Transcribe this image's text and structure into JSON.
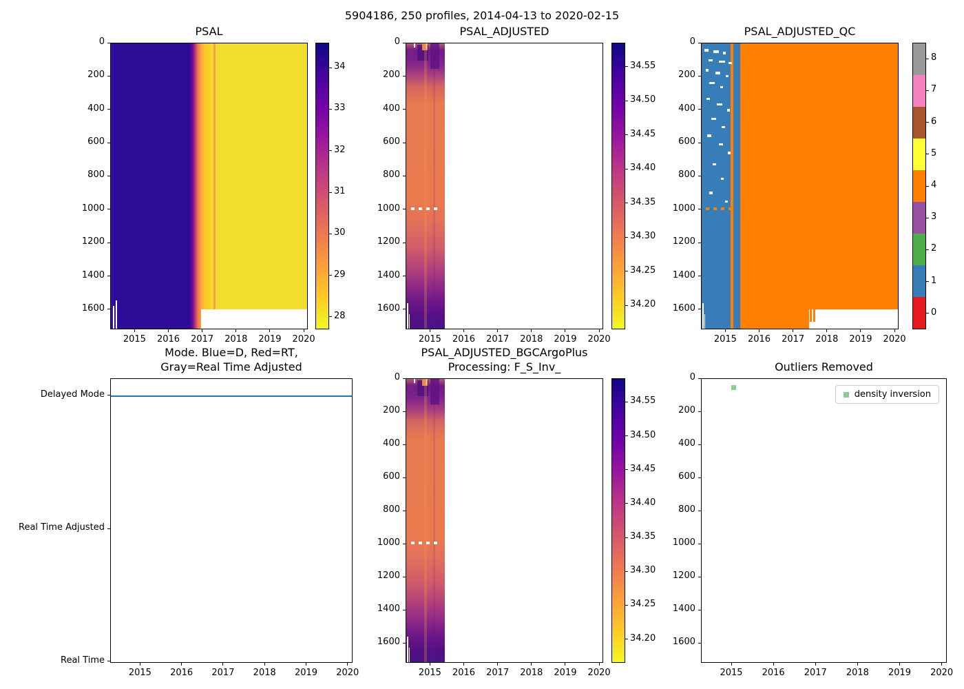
{
  "figure_title": "5904186, 250 profiles, 2014-04-13 to 2020-02-15",
  "colors": {
    "plasma_r_top_to_bottom": [
      "#0d0887",
      "#46039f",
      "#7201a8",
      "#9c179e",
      "#bd3786",
      "#d8576b",
      "#ed7953",
      "#fb9f3a",
      "#fdca26",
      "#f0f921"
    ],
    "qc_palette_0_to_8": [
      "#e41a1c",
      "#377eb8",
      "#4daf4a",
      "#984ea3",
      "#ff7f00",
      "#ffff33",
      "#a65628",
      "#f781bf",
      "#999999"
    ],
    "mode_line_blue": "#1f77b4",
    "outlier_green": "#8fca8f",
    "axes_edge": "#000000"
  },
  "chart_data": [
    {
      "type": "heatmap",
      "title": "PSAL",
      "x_range": [
        2014.28,
        2020.12
      ],
      "y_range": [
        0,
        1720
      ],
      "y_inverted": true,
      "xticks": [
        "2015",
        "2016",
        "2017",
        "2018",
        "2019",
        "2020"
      ],
      "xtick_values": [
        2015,
        2016,
        2017,
        2018,
        2019,
        2020
      ],
      "yticks": [
        "0",
        "200",
        "400",
        "600",
        "800",
        "1000",
        "1200",
        "1400",
        "1600"
      ],
      "ytick_values": [
        0,
        200,
        400,
        600,
        800,
        1000,
        1200,
        1400,
        1600
      ],
      "colorbar": {
        "colormap": "plasma_r",
        "vmin": 27.7,
        "vmax": 34.6,
        "ticks": [
          "34",
          "33",
          "32",
          "31",
          "30",
          "29",
          "28"
        ],
        "tick_values": [
          34,
          33,
          32,
          31,
          30,
          29,
          28
        ]
      },
      "regions": [
        {
          "x_from": 2014.3,
          "x_to": 2016.75,
          "psal_approx": 34.2,
          "note": "uniform dark indigo, all depths 0-1700 dbar"
        },
        {
          "x_from": 2016.75,
          "x_to": 2017.1,
          "psal_approx": "sharp transition 34 -> 28.5 (purple-magenta-orange band)"
        },
        {
          "x_from": 2017.1,
          "x_to": 2020.12,
          "psal_approx": 28.1,
          "note": "uniform yellow; thin orange stripe near 2017.4"
        }
      ],
      "no_data": "below ~1600 dbar from 2017 onward"
    },
    {
      "type": "heatmap",
      "title": "PSAL_ADJUSTED",
      "x_range": [
        2014.28,
        2020.12
      ],
      "y_range": [
        0,
        1720
      ],
      "y_inverted": true,
      "xticks": [
        "2015",
        "2016",
        "2017",
        "2018",
        "2019",
        "2020"
      ],
      "xtick_values": [
        2015,
        2016,
        2017,
        2018,
        2019,
        2020
      ],
      "yticks": [
        "0",
        "200",
        "400",
        "600",
        "800",
        "1000",
        "1200",
        "1400",
        "1600"
      ],
      "ytick_values": [
        0,
        200,
        400,
        600,
        800,
        1000,
        1200,
        1400,
        1600
      ],
      "colorbar": {
        "colormap": "plasma_r",
        "vmin": 34.165,
        "vmax": 34.585,
        "ticks": [
          "34.55",
          "34.50",
          "34.45",
          "34.40",
          "34.35",
          "34.30",
          "34.25",
          "34.20"
        ],
        "tick_values": [
          34.55,
          34.5,
          34.45,
          34.4,
          34.35,
          34.3,
          34.25,
          34.2
        ]
      },
      "regions": [
        {
          "x_from": 2014.3,
          "x_to": 2015.45,
          "depth_profile": [
            {
              "dbar": "0-250",
              "psal_adjusted_approx": "34.45-34.57 patchy purple/orange"
            },
            {
              "dbar": "250-1200",
              "psal_adjusted_approx": "34.28-34.33 orange-salmon"
            },
            {
              "dbar": "1200-1500",
              "psal_adjusted_approx": "34.35-34.45 pink-magenta"
            },
            {
              "dbar": "1500-1700",
              "psal_adjusted_approx": "34.50-34.57 purple"
            }
          ],
          "note": "missing-data dotted row near 1000 dbar around 2015"
        },
        {
          "x_from": 2015.45,
          "x_to": 2020.12,
          "psal_adjusted_approx": "no data (blank)"
        }
      ]
    },
    {
      "type": "heatmap",
      "title": "PSAL_ADJUSTED_QC",
      "x_range": [
        2014.28,
        2020.12
      ],
      "y_range": [
        0,
        1720
      ],
      "y_inverted": true,
      "xticks": [
        "2015",
        "2016",
        "2017",
        "2018",
        "2019",
        "2020"
      ],
      "xtick_values": [
        2015,
        2016,
        2017,
        2018,
        2019,
        2020
      ],
      "yticks": [
        "0",
        "200",
        "400",
        "600",
        "800",
        "1000",
        "1200",
        "1400",
        "1600"
      ],
      "ytick_values": [
        0,
        200,
        400,
        600,
        800,
        1000,
        1200,
        1400,
        1600
      ],
      "colorbar": {
        "colormap": "discrete 9-color (Set1-like)",
        "categories": [
          0,
          1,
          2,
          3,
          4,
          5,
          6,
          7,
          8
        ],
        "ticks": [
          "0",
          "1",
          "2",
          "3",
          "4",
          "5",
          "6",
          "7",
          "8"
        ],
        "tick_values": [
          0,
          1,
          2,
          3,
          4,
          5,
          6,
          7,
          8
        ]
      },
      "regions": [
        {
          "x_from": 2014.3,
          "x_to": 2015.45,
          "qc": 1,
          "note": "blue; scattered white missing dashes in upper 600 dbar; vertical QC=4 stripe near 2015.15; QC=4 dashed row near 1000 dbar"
        },
        {
          "x_from": 2015.45,
          "x_to": 2020.12,
          "qc": 4,
          "note": "solid orange"
        }
      ],
      "no_data": "below ~1600 dbar from ~2017.5 onward"
    },
    {
      "type": "line",
      "title": "Mode. Blue=D, Red=RT,\nGray=Real Time Adjusted",
      "x_range": [
        2014.28,
        2020.12
      ],
      "xticks": [
        "2015",
        "2016",
        "2017",
        "2018",
        "2019",
        "2020"
      ],
      "xtick_values": [
        2015,
        2016,
        2017,
        2018,
        2019,
        2020
      ],
      "yticks": [
        "Delayed Mode",
        "Real Time Adjusted",
        "Real Time"
      ],
      "series": [
        {
          "name": "mode",
          "color": "#1f77b4",
          "value": "Delayed Mode",
          "x_from": 2014.3,
          "x_to": 2020.12,
          "note": "constant horizontal line at Delayed Mode"
        }
      ]
    },
    {
      "type": "heatmap",
      "title": "PSAL_ADJUSTED_BGCArgoPlus\nProcessing: F_S_Inv_",
      "x_range": [
        2014.28,
        2020.12
      ],
      "y_range": [
        0,
        1720
      ],
      "y_inverted": true,
      "xticks": [
        "2015",
        "2016",
        "2017",
        "2018",
        "2019",
        "2020"
      ],
      "xtick_values": [
        2015,
        2016,
        2017,
        2018,
        2019,
        2020
      ],
      "yticks": [
        "0",
        "200",
        "400",
        "600",
        "800",
        "1000",
        "1200",
        "1400",
        "1600"
      ],
      "ytick_values": [
        0,
        200,
        400,
        600,
        800,
        1000,
        1200,
        1400,
        1600
      ],
      "colorbar": {
        "colormap": "plasma_r",
        "vmin": 34.165,
        "vmax": 34.585,
        "ticks": [
          "34.55",
          "34.50",
          "34.45",
          "34.40",
          "34.35",
          "34.30",
          "34.25",
          "34.20"
        ],
        "tick_values": [
          34.55,
          34.5,
          34.45,
          34.4,
          34.35,
          34.3,
          34.25,
          34.2
        ]
      },
      "regions": [
        {
          "x_from": 2014.3,
          "x_to": 2015.45,
          "note": "same adjusted salinity band as PSAL_ADJUSTED panel"
        },
        {
          "x_from": 2015.45,
          "x_to": 2020.12,
          "note": "no data (blank)"
        }
      ]
    },
    {
      "type": "scatter",
      "title": "Outliers Removed",
      "x_range": [
        2014.28,
        2020.12
      ],
      "y_range": [
        0,
        1720
      ],
      "y_inverted": true,
      "xticks": [
        "2015",
        "2016",
        "2017",
        "2018",
        "2019",
        "2020"
      ],
      "xtick_values": [
        2015,
        2016,
        2017,
        2018,
        2019,
        2020
      ],
      "yticks": [
        "0",
        "200",
        "400",
        "600",
        "800",
        "1000",
        "1200",
        "1400",
        "1600"
      ],
      "ytick_values": [
        0,
        200,
        400,
        600,
        800,
        1000,
        1200,
        1400,
        1600
      ],
      "legend": [
        {
          "label": "density inversion",
          "marker": "square",
          "color": "#8fca8f",
          "position": "upper right"
        }
      ],
      "points": [
        {
          "x": 2015.05,
          "y_dbar": 55,
          "series": "density inversion"
        }
      ]
    }
  ]
}
